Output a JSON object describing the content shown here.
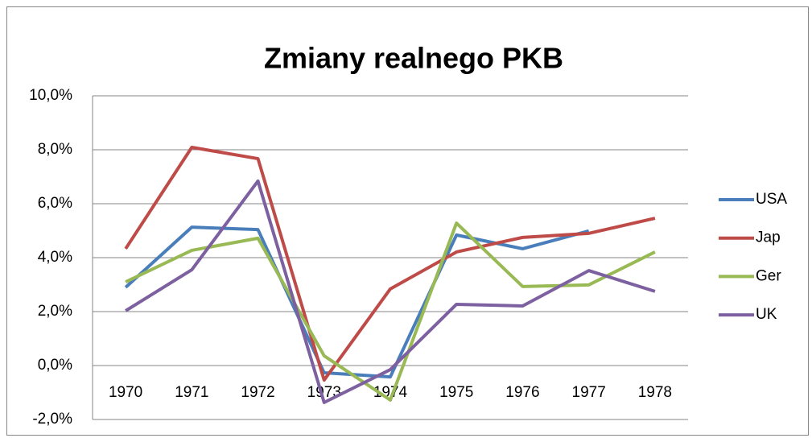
{
  "chart_data": {
    "type": "line",
    "title": "Zmiany realnego PKB",
    "categories": [
      "1970",
      "1971",
      "1972",
      "1973",
      "1974",
      "1975",
      "1976",
      "1977",
      "1978"
    ],
    "series": [
      {
        "name": "USA",
        "color": "#4a7ebb",
        "values": [
          2.9,
          5.13,
          5.04,
          -0.27,
          -0.42,
          4.84,
          4.33,
          4.99,
          null
        ]
      },
      {
        "name": "Jap",
        "color": "#be4b48",
        "values": [
          4.33,
          8.09,
          7.67,
          -0.54,
          2.84,
          4.21,
          4.75,
          4.9,
          5.46
        ]
      },
      {
        "name": "Ger",
        "color": "#98b954",
        "values": [
          3.1,
          4.27,
          4.72,
          0.36,
          -1.28,
          5.28,
          2.93,
          2.99,
          4.21
        ]
      },
      {
        "name": "UK",
        "color": "#7d60a0",
        "values": [
          2.03,
          3.55,
          6.84,
          -1.37,
          -0.15,
          2.27,
          2.21,
          3.52,
          2.75
        ]
      }
    ],
    "ylim": [
      -2,
      10
    ],
    "yticks": [
      {
        "value": -2,
        "label": "-2,0%"
      },
      {
        "value": 0,
        "label": "0,0%"
      },
      {
        "value": 2,
        "label": "2,0%"
      },
      {
        "value": 4,
        "label": "4,0%"
      },
      {
        "value": 6,
        "label": "6,0%"
      },
      {
        "value": 8,
        "label": "8,0%"
      },
      {
        "value": 10,
        "label": "10,0%"
      }
    ],
    "grid": true,
    "legend": "right"
  }
}
